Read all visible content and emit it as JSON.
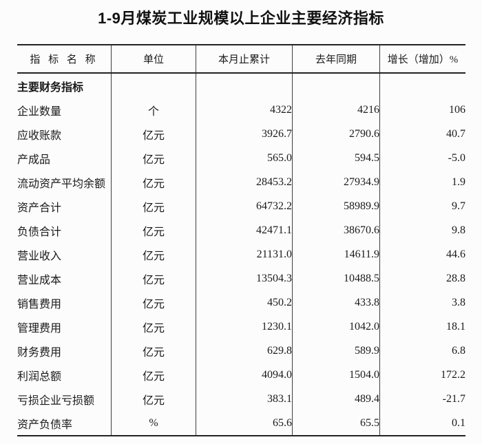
{
  "title": "1-9月煤炭工业规模以上企业主要经济指标",
  "colors": {
    "background": "#fcfcfc",
    "text": "#1a1a1a",
    "heavy_rule": "#222222",
    "column_rule": "#3d3d3d"
  },
  "table": {
    "headers": [
      "指 标 名 称",
      "单位",
      "本月止累计",
      "去年同期",
      "增长（增加）%"
    ],
    "rows": [
      {
        "section": true,
        "cells": [
          "主要财务指标",
          "",
          "",
          "",
          ""
        ]
      },
      {
        "section": false,
        "cells": [
          "企业数量",
          "个",
          "4322",
          "4216",
          "106"
        ]
      },
      {
        "section": false,
        "cells": [
          "应收账款",
          "亿元",
          "3926.7",
          "2790.6",
          "40.7"
        ]
      },
      {
        "section": false,
        "cells": [
          "产成品",
          "亿元",
          "565.0",
          "594.5",
          "-5.0"
        ]
      },
      {
        "section": false,
        "cells": [
          "流动资产平均余额",
          "亿元",
          "28453.2",
          "27934.9",
          "1.9"
        ]
      },
      {
        "section": false,
        "cells": [
          "资产合计",
          "亿元",
          "64732.2",
          "58989.9",
          "9.7"
        ]
      },
      {
        "section": false,
        "cells": [
          "负债合计",
          "亿元",
          "42471.1",
          "38670.6",
          "9.8"
        ]
      },
      {
        "section": false,
        "cells": [
          "营业收入",
          "亿元",
          "21131.0",
          "14611.9",
          "44.6"
        ]
      },
      {
        "section": false,
        "cells": [
          "营业成本",
          "亿元",
          "13504.3",
          "10488.5",
          "28.8"
        ]
      },
      {
        "section": false,
        "cells": [
          "销售费用",
          "亿元",
          "450.2",
          "433.8",
          "3.8"
        ]
      },
      {
        "section": false,
        "cells": [
          "管理费用",
          "亿元",
          "1230.1",
          "1042.0",
          "18.1"
        ]
      },
      {
        "section": false,
        "cells": [
          "财务费用",
          "亿元",
          "629.8",
          "589.9",
          "6.8"
        ]
      },
      {
        "section": false,
        "cells": [
          "利润总额",
          "亿元",
          "4094.0",
          "1504.0",
          "172.2"
        ]
      },
      {
        "section": false,
        "cells": [
          "亏损企业亏损额",
          "亿元",
          "383.1",
          "489.4",
          "-21.7"
        ]
      },
      {
        "section": false,
        "cells": [
          "资产负债率",
          "%",
          "65.6",
          "65.5",
          "0.1"
        ]
      }
    ]
  }
}
